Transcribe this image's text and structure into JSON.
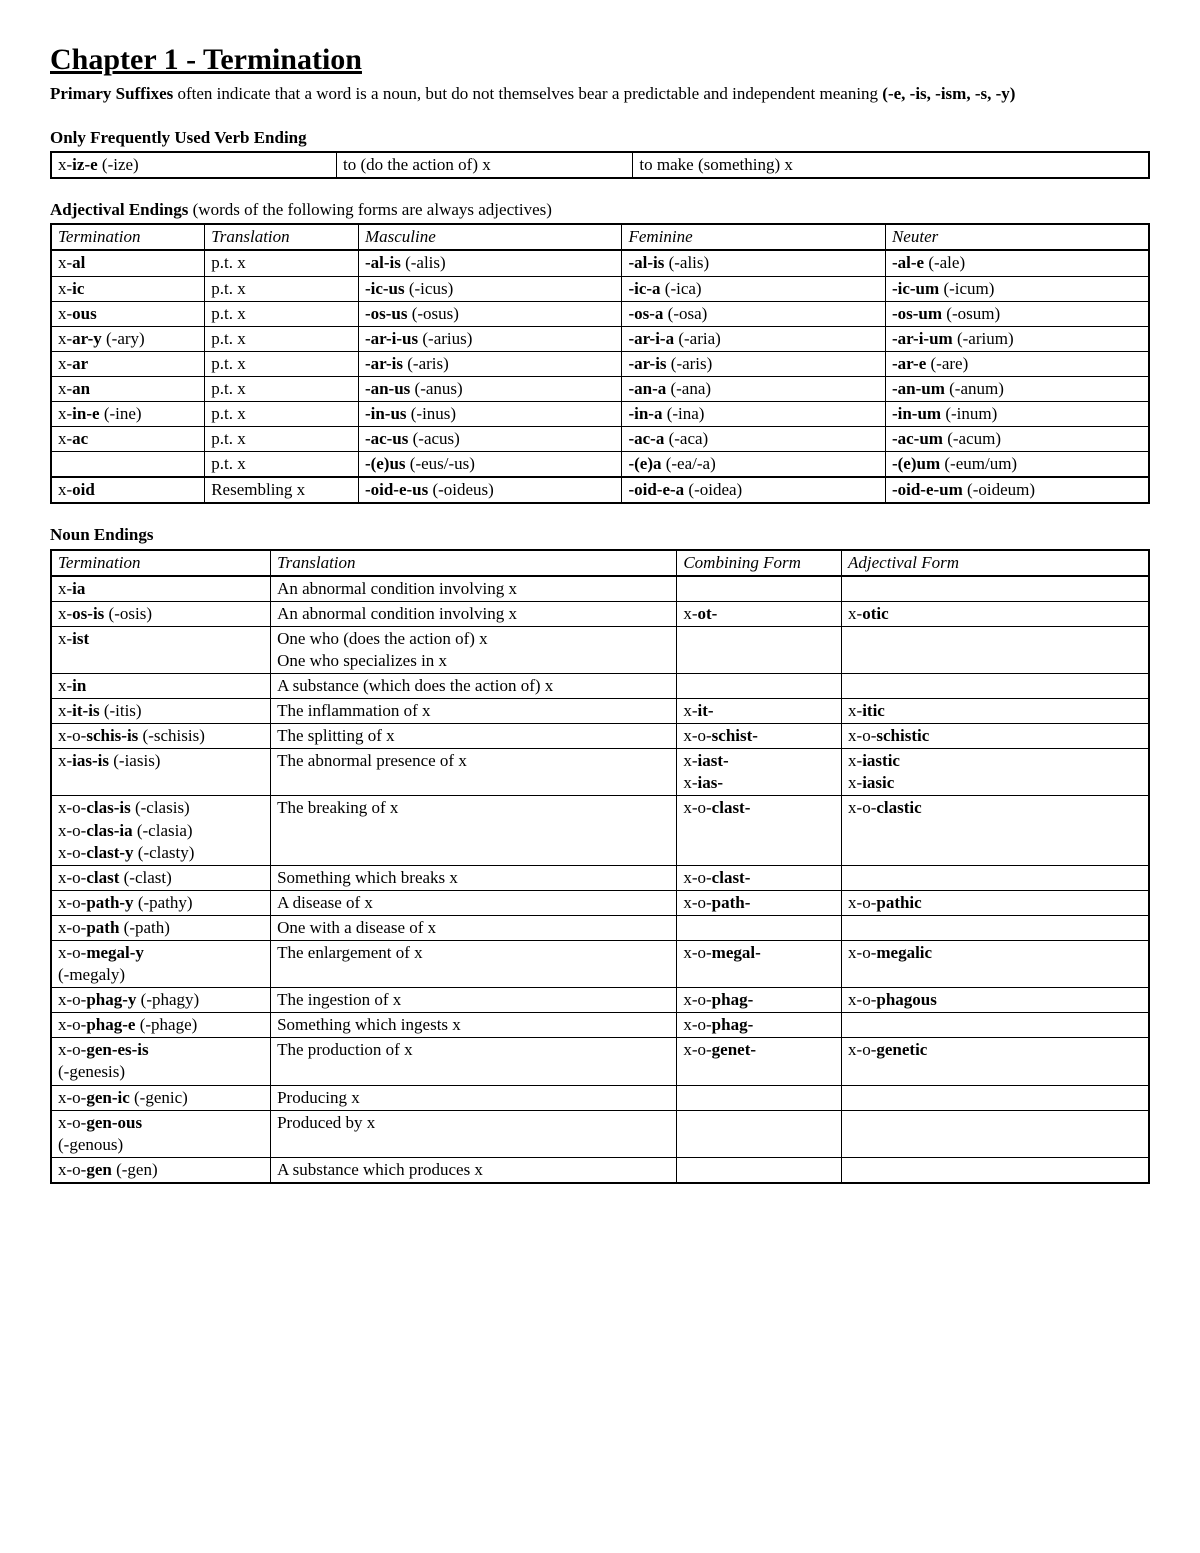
{
  "title": "Chapter 1 - Termination",
  "intro_bold": "Primary Suffixes",
  "intro_rest": " often indicate that a word is a noun, but do not themselves bear a predictable and independent meaning ",
  "intro_suffixes": "(-e, -is, -ism, -s, -y)",
  "verb_heading": "Only Frequently Used Verb Ending",
  "verb_row": {
    "c1_pre": "x-",
    "c1_bold": "iz-e",
    "c1_post": " (-ize)",
    "c2": "to (do the action of) x",
    "c3": "to make (something) x"
  },
  "adj_heading": "Adjectival Endings ",
  "adj_note": "(words of the following forms are always adjectives)",
  "adj_headers": [
    "Termination",
    "Translation",
    "Masculine",
    "Feminine",
    "Neuter"
  ],
  "adj_rows": [
    {
      "t_pre": "x-",
      "t_b": "al",
      "t_post": "",
      "tr": "p.t. x",
      "m_b": "-al-is",
      "m_p": " (-alis)",
      "f_b": "-al-is",
      "f_p": " (-alis)",
      "n_b": "-al-e",
      "n_p": " (-ale)"
    },
    {
      "t_pre": "x-",
      "t_b": "ic",
      "t_post": "",
      "tr": "p.t. x",
      "m_b": "-ic-us",
      "m_p": " (-icus)",
      "f_b": "-ic-a",
      "f_p": " (-ica)",
      "n_b": "-ic-um",
      "n_p": " (-icum)"
    },
    {
      "t_pre": "x-",
      "t_b": "ous",
      "t_post": "",
      "tr": "p.t. x",
      "m_b": "-os-us",
      "m_p": " (-osus)",
      "f_b": "-os-a",
      "f_p": " (-osa)",
      "n_b": "-os-um",
      "n_p": " (-osum)"
    },
    {
      "t_pre": "x-",
      "t_b": "ar-y",
      "t_post": " (-ary)",
      "tr": "p.t. x",
      "m_b": "-ar-i-us",
      "m_p": " (-arius)",
      "f_b": "-ar-i-a",
      "f_p": " (-aria)",
      "n_b": "-ar-i-um",
      "n_p": " (-arium)"
    },
    {
      "t_pre": "x-",
      "t_b": "ar",
      "t_post": "",
      "tr": "p.t. x",
      "m_b": "-ar-is",
      "m_p": " (-aris)",
      "f_b": "-ar-is",
      "f_p": " (-aris)",
      "n_b": "-ar-e",
      "n_p": " (-are)"
    },
    {
      "t_pre": "x-",
      "t_b": "an",
      "t_post": "",
      "tr": "p.t. x",
      "m_b": "-an-us",
      "m_p": " (-anus)",
      "f_b": "-an-a",
      "f_p": " (-ana)",
      "n_b": "-an-um",
      "n_p": " (-anum)"
    },
    {
      "t_pre": "x-",
      "t_b": "in-e",
      "t_post": " (-ine)",
      "tr": "p.t. x",
      "m_b": "-in-us",
      "m_p": " (-inus)",
      "f_b": "-in-a",
      "f_p": " (-ina)",
      "n_b": "-in-um",
      "n_p": " (-inum)"
    },
    {
      "t_pre": "x-",
      "t_b": "ac",
      "t_post": "",
      "tr": "p.t. x",
      "m_b": "-ac-us",
      "m_p": " (-acus)",
      "f_b": "-ac-a",
      "f_p": " (-aca)",
      "n_b": "-ac-um",
      "n_p": " (-acum)"
    },
    {
      "t_pre": "",
      "t_b": "",
      "t_post": "",
      "tr": "p.t. x",
      "m_b": "-(e)us",
      "m_p": " (-eus/-us)",
      "f_b": "-(e)a",
      "f_p": " (-ea/-a)",
      "n_b": "-(e)um",
      "n_p": " (-eum/um)"
    },
    {
      "t_pre": "x-",
      "t_b": "oid",
      "t_post": "",
      "tr": "Resembling x",
      "m_b": "-oid-e-us",
      "m_p": " (-oideus)",
      "f_b": "-oid-e-a",
      "f_p": " (-oidea)",
      "n_b": "-oid-e-um",
      "n_p": " (-oideum)"
    }
  ],
  "noun_heading": "Noun Endings",
  "noun_headers": [
    "Termination",
    "Translation",
    "Combining Form",
    "Adjectival Form"
  ],
  "noun_rows": [
    {
      "term": [
        {
          "pre": "x-",
          "b": "ia",
          "post": ""
        }
      ],
      "tr": [
        "An abnormal condition involving x"
      ],
      "cf": [],
      "af": []
    },
    {
      "term": [
        {
          "pre": "x-",
          "b": "os-is",
          "post": " (-osis)"
        }
      ],
      "tr": [
        "An abnormal condition involving x"
      ],
      "cf": [
        {
          "pre": "x-",
          "b": "ot-",
          "post": ""
        }
      ],
      "af": [
        {
          "pre": "x-",
          "b": "otic",
          "post": ""
        }
      ]
    },
    {
      "term": [
        {
          "pre": "x-",
          "b": "ist",
          "post": ""
        }
      ],
      "tr": [
        "One who (does the action of) x",
        "One who specializes in x"
      ],
      "cf": [],
      "af": []
    },
    {
      "term": [
        {
          "pre": "x-",
          "b": "in",
          "post": ""
        }
      ],
      "tr": [
        "A substance (which does the action of) x"
      ],
      "cf": [],
      "af": []
    },
    {
      "term": [
        {
          "pre": "x-",
          "b": "it-is",
          "post": " (-itis)"
        }
      ],
      "tr": [
        "The inflammation of x"
      ],
      "cf": [
        {
          "pre": "x-",
          "b": "it-",
          "post": ""
        }
      ],
      "af": [
        {
          "pre": "x-",
          "b": "itic",
          "post": ""
        }
      ]
    },
    {
      "term": [
        {
          "pre": "x-o-",
          "b": "schis-is",
          "post": " (-schisis)"
        }
      ],
      "tr": [
        "The splitting of x"
      ],
      "cf": [
        {
          "pre": "x-o-",
          "b": "schist-",
          "post": ""
        }
      ],
      "af": [
        {
          "pre": "x-o-",
          "b": "schistic",
          "post": ""
        }
      ]
    },
    {
      "term": [
        {
          "pre": "x-",
          "b": "ias-is",
          "post": " (-iasis)"
        }
      ],
      "tr": [
        "The abnormal presence of x"
      ],
      "cf": [
        {
          "pre": "x-",
          "b": "iast-",
          "post": ""
        },
        {
          "pre": "x-",
          "b": "ias-",
          "post": ""
        }
      ],
      "af": [
        {
          "pre": "x-",
          "b": "iastic",
          "post": ""
        },
        {
          "pre": "x-",
          "b": "iasic",
          "post": ""
        }
      ]
    },
    {
      "term": [
        {
          "pre": "x-o-",
          "b": "clas-is",
          "post": " (-clasis)"
        },
        {
          "pre": "x-o-",
          "b": "clas-ia",
          "post": " (-clasia)"
        },
        {
          "pre": "x-o-",
          "b": "clast-y",
          "post": " (-clasty)"
        }
      ],
      "tr": [
        "The breaking of x"
      ],
      "cf": [
        {
          "pre": "x-o-",
          "b": "clast-",
          "post": ""
        }
      ],
      "af": [
        {
          "pre": "x-o-",
          "b": "clastic",
          "post": ""
        }
      ]
    },
    {
      "term": [
        {
          "pre": "x-o-",
          "b": "clast",
          "post": " (-clast)"
        }
      ],
      "tr": [
        "Something which breaks x"
      ],
      "cf": [
        {
          "pre": "x-o-",
          "b": "clast-",
          "post": ""
        }
      ],
      "af": []
    },
    {
      "term": [
        {
          "pre": "x-o-",
          "b": "path-y",
          "post": " (-pathy)"
        }
      ],
      "tr": [
        "A disease of x"
      ],
      "cf": [
        {
          "pre": "x-o-",
          "b": "path-",
          "post": ""
        }
      ],
      "af": [
        {
          "pre": "x-o-",
          "b": "pathic",
          "post": ""
        }
      ]
    },
    {
      "term": [
        {
          "pre": "x-o-",
          "b": "path",
          "post": " (-path)"
        }
      ],
      "tr": [
        "One with a disease of x"
      ],
      "cf": [],
      "af": []
    },
    {
      "term": [
        {
          "pre": "x-o-",
          "b": "megal-y",
          "post": ""
        },
        {
          "pre": "",
          "b": "",
          "post": "(-megaly)"
        }
      ],
      "tr": [
        "The enlargement of x"
      ],
      "cf": [
        {
          "pre": "x-o-",
          "b": "megal-",
          "post": ""
        }
      ],
      "af": [
        {
          "pre": "x-o-",
          "b": "megalic",
          "post": ""
        }
      ]
    },
    {
      "term": [
        {
          "pre": "x-o-",
          "b": "phag-y",
          "post": " (-phagy)"
        }
      ],
      "tr": [
        "The ingestion of x"
      ],
      "cf": [
        {
          "pre": "x-o-",
          "b": "phag-",
          "post": ""
        }
      ],
      "af": [
        {
          "pre": "x-o-",
          "b": "phagous",
          "post": ""
        }
      ]
    },
    {
      "term": [
        {
          "pre": "x-o-",
          "b": "phag-e",
          "post": " (-phage)"
        }
      ],
      "tr": [
        "Something which ingests x"
      ],
      "cf": [
        {
          "pre": "x-o-",
          "b": "phag-",
          "post": ""
        }
      ],
      "af": []
    },
    {
      "term": [
        {
          "pre": "x-o-",
          "b": "gen-es-is",
          "post": ""
        },
        {
          "pre": "",
          "b": "",
          "post": "(-genesis)"
        }
      ],
      "tr": [
        "The production of x"
      ],
      "cf": [
        {
          "pre": "x-o-",
          "b": "genet-",
          "post": ""
        }
      ],
      "af": [
        {
          "pre": "x-o-",
          "b": "genetic",
          "post": ""
        }
      ]
    },
    {
      "term": [
        {
          "pre": "x-o-",
          "b": "gen-ic",
          "post": " (-genic)"
        }
      ],
      "tr": [
        "Producing x"
      ],
      "cf": [],
      "af": []
    },
    {
      "term": [
        {
          "pre": "x-o-",
          "b": "gen-ous",
          "post": ""
        },
        {
          "pre": "",
          "b": "",
          "post": "(-genous)"
        }
      ],
      "tr": [
        "Produced by x"
      ],
      "cf": [],
      "af": []
    },
    {
      "term": [
        {
          "pre": "x-o-",
          "b": "gen",
          "post": " (-gen)"
        }
      ],
      "tr": [
        "A substance which produces x"
      ],
      "cf": [],
      "af": []
    }
  ]
}
